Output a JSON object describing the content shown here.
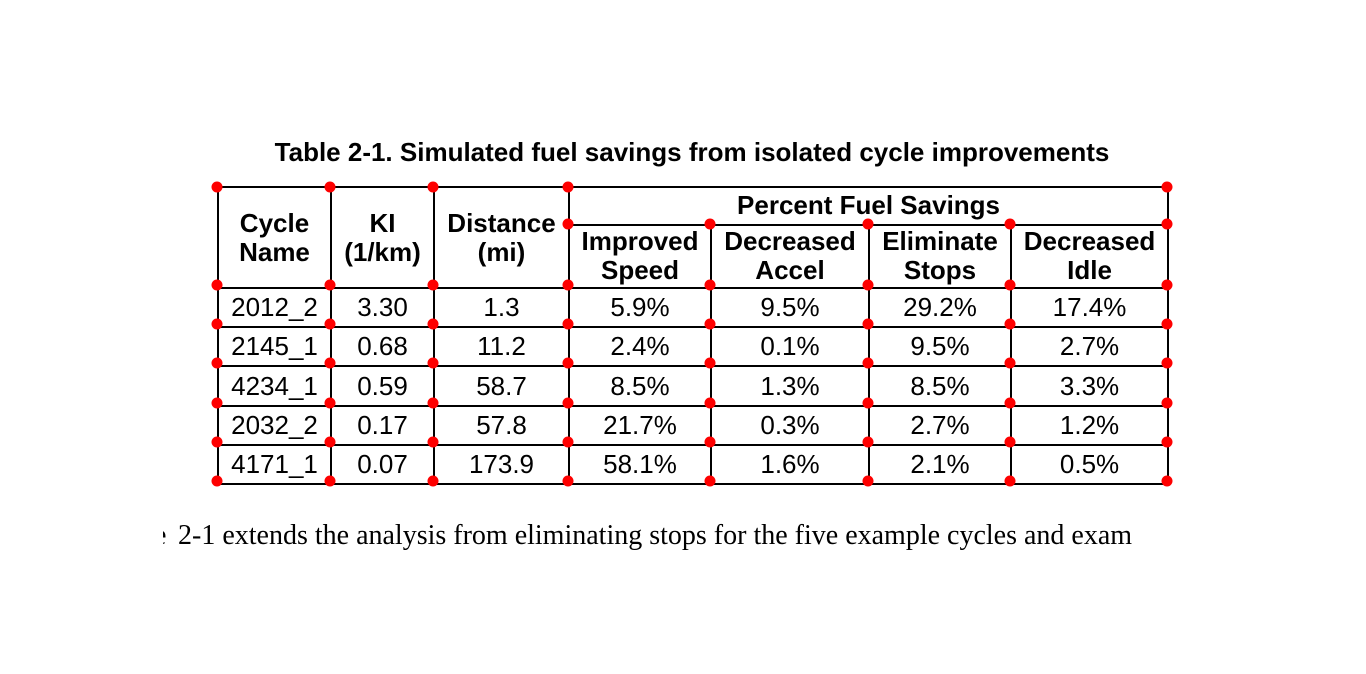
{
  "title": "Table 2-1. Simulated fuel savings from isolated cycle improvements",
  "table": {
    "header": {
      "cycle_name": "Cycle\nName",
      "ki": "KI\n(1/km)",
      "distance": "Distance\n(mi)",
      "group": "Percent Fuel Savings",
      "sub": {
        "improved_speed": "Improved\nSpeed",
        "decreased_accel": "Decreased\nAccel",
        "eliminate_stops": "Eliminate\nStops",
        "decreased_idle": "Decreased\nIdle"
      }
    },
    "rows": [
      [
        "2012_2",
        "3.30",
        "1.3",
        "5.9%",
        "9.5%",
        "29.2%",
        "17.4%"
      ],
      [
        "2145_1",
        "0.68",
        "11.2",
        "2.4%",
        "0.1%",
        "9.5%",
        "2.7%"
      ],
      [
        "4234_1",
        "0.59",
        "58.7",
        "8.5%",
        "1.3%",
        "8.5%",
        "3.3%"
      ],
      [
        "2032_2",
        "0.17",
        "57.8",
        "21.7%",
        "0.3%",
        "2.7%",
        "1.2%"
      ],
      [
        "4171_1",
        "0.07",
        "173.9",
        "58.1%",
        "1.6%",
        "2.1%",
        "0.5%"
      ]
    ]
  },
  "paragraph": {
    "clipped_letter": "e",
    "text": "2-1 extends the analysis from eliminating stops for the five example cycles and exam"
  },
  "marker_color": "#fe0000"
}
